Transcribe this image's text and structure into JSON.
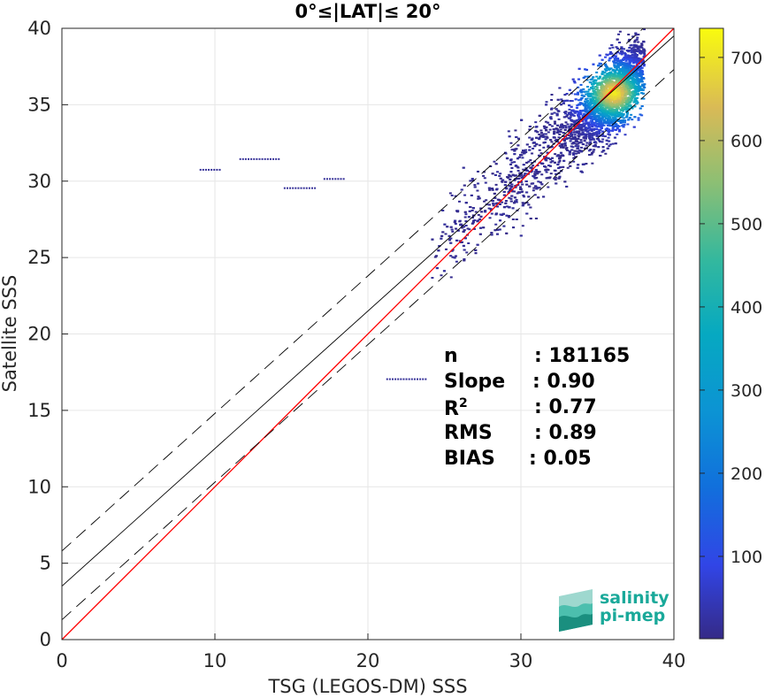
{
  "chart_data": {
    "type": "heatmap",
    "title": "0°≤|LAT|≤ 20°",
    "xlabel": "TSG (LEGOS-DM) SSS",
    "ylabel": "Satellite SSS",
    "xlim": [
      0,
      40
    ],
    "ylim": [
      0,
      40
    ],
    "xticks": [
      "0",
      "10",
      "20",
      "30",
      "40"
    ],
    "yticks": [
      "0",
      "5",
      "10",
      "15",
      "20",
      "25",
      "30",
      "35",
      "40"
    ],
    "grid": true,
    "colorbar": {
      "range": [
        1,
        735
      ],
      "ticks": [
        "100",
        "200",
        "300",
        "400",
        "500",
        "600",
        "700"
      ],
      "colormap": "parula"
    },
    "density": {
      "peak": [
        36.0,
        35.8
      ],
      "peak_count": 735,
      "core_spread_x": 1.2,
      "core_spread_y": 1.1,
      "main_cloud_x_range": [
        24,
        38
      ],
      "main_cloud_y_range": [
        20,
        40
      ]
    },
    "outlier_segments": [
      {
        "x": [
          9.0,
          10.4
        ],
        "y": 30.8
      },
      {
        "x": [
          11.6,
          14.2
        ],
        "y": 31.5
      },
      {
        "x": [
          14.5,
          16.5
        ],
        "y": 29.6
      },
      {
        "x": [
          17.1,
          18.5
        ],
        "y": 30.2
      },
      {
        "x": [
          21.2,
          23.8
        ],
        "y": 17.1
      }
    ],
    "lines": [
      {
        "name": "1:1",
        "color": "#ff0000",
        "style": "solid",
        "intercept": 0,
        "slope": 1
      },
      {
        "name": "fit",
        "color": "#000000",
        "style": "solid",
        "intercept": 3.5,
        "slope": 0.9
      },
      {
        "name": "fit+",
        "color": "#000000",
        "style": "dashed",
        "intercept": 5.8,
        "slope": 0.9
      },
      {
        "name": "fit-",
        "color": "#000000",
        "style": "dashed",
        "intercept": 1.3,
        "slope": 0.9
      }
    ],
    "stats": [
      {
        "label": "n",
        "sup": "",
        "value": ": 181165"
      },
      {
        "label": "Slope",
        "sup": "",
        "value": ": 0.90"
      },
      {
        "label": "R",
        "sup": "2",
        "value": ": 0.77"
      },
      {
        "label": "RMS",
        "sup": "",
        "value": ": 0.89"
      },
      {
        "label": "BIAS",
        "sup": "",
        "value": ": 0.05"
      }
    ]
  },
  "logo": {
    "line1": "salinity",
    "line2": "pi-mep",
    "color": "#1aa99a"
  }
}
